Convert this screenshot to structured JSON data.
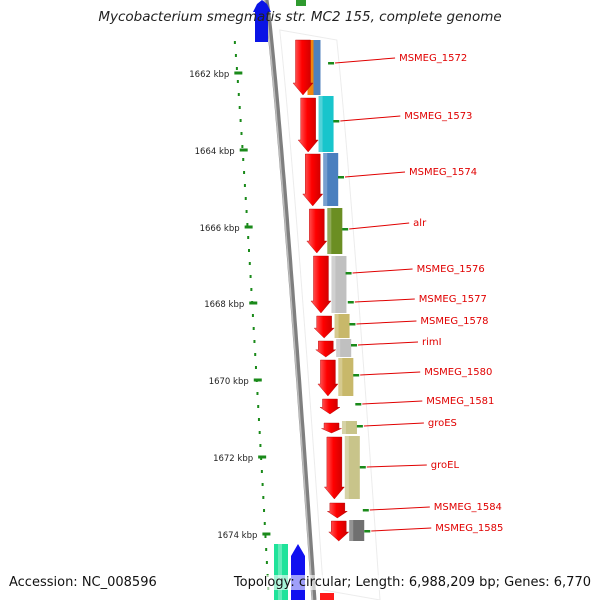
{
  "title": "Mycobacterium smegmatis str. MC2 155, complete genome",
  "accession": "Accession: NC_008596",
  "summary": "Topology: circular; Length: 6,988,209 bp; Genes: 6,770",
  "colors": {
    "backbone": "#7f7f7f",
    "tick": "#1a8a1a",
    "label": "#e00000",
    "gene_arrow": "#ff1a1a"
  },
  "ruler": {
    "ticks": [
      {
        "label": "1662 kbp"
      },
      {
        "label": "1664 kbp"
      },
      {
        "label": "1666 kbp"
      },
      {
        "label": "1668 kbp"
      },
      {
        "label": "1670 kbp"
      },
      {
        "label": "1672 kbp"
      },
      {
        "label": "1674 kbp"
      }
    ]
  },
  "genes": [
    {
      "name": "MSMEG_1572",
      "cog_color": "#f2840c",
      "cog_color2": "#4f81bd"
    },
    {
      "name": "MSMEG_1573",
      "cog_color": "#18c5cc"
    },
    {
      "name": "MSMEG_1574",
      "cog_color": "#4a7fbf"
    },
    {
      "name": "alr",
      "cog_color": "#6b8e23"
    },
    {
      "name": "MSMEG_1576",
      "cog_color": "#c0c0c0"
    },
    {
      "name": "MSMEG_1577",
      "cog_color": "#c0c0c0"
    },
    {
      "name": "MSMEG_1578",
      "cog_color": "#c8b86a"
    },
    {
      "name": "rimI",
      "cog_color": "#c0c0c0"
    },
    {
      "name": "MSMEG_1580",
      "cog_color": "#c8b86a"
    },
    {
      "name": "MSMEG_1581",
      "cog_color": ""
    },
    {
      "name": "groES",
      "cog_color": "#c8c48a"
    },
    {
      "name": "groEL",
      "cog_color": "#c8c48a"
    },
    {
      "name": "MSMEG_1584",
      "cog_color": ""
    },
    {
      "name": "MSMEG_1585",
      "cog_color": "#707070"
    }
  ]
}
